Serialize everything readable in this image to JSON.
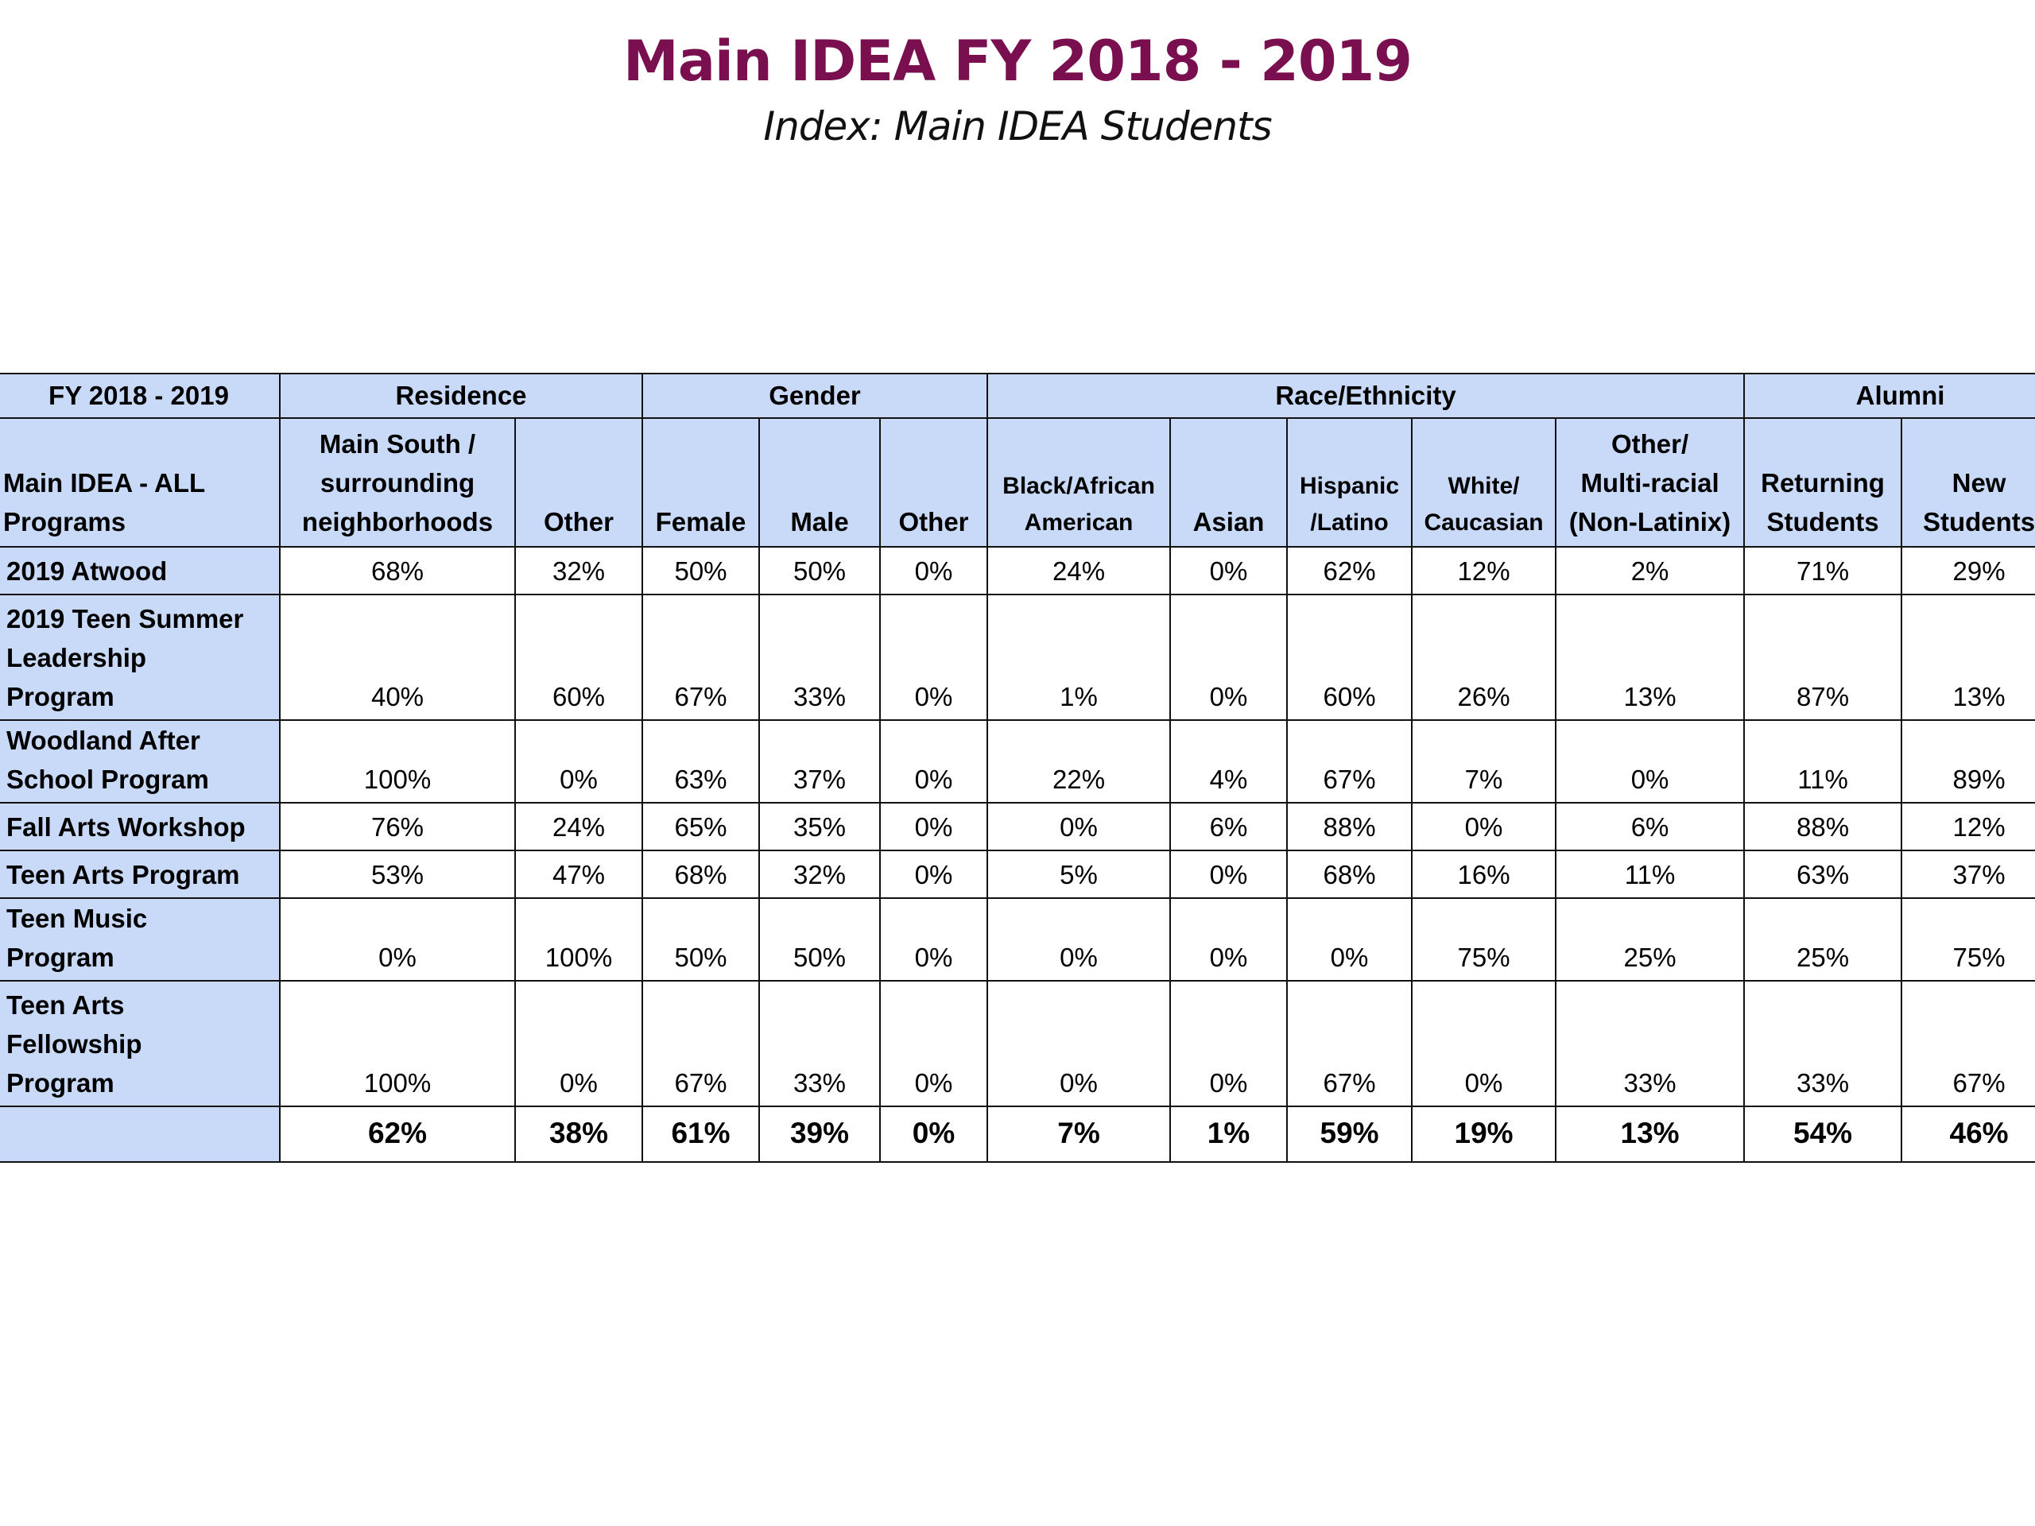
{
  "header": {
    "title": "Main IDEA FY 2018 - 2019",
    "subtitle": "Index: Main IDEA Students"
  },
  "colors": {
    "title": "#7a0f50",
    "header_fill": "#c9daf8",
    "border": "#111111"
  },
  "table": {
    "groups": {
      "fy": "FY 2018 - 2019",
      "residence": "Residence",
      "gender": "Gender",
      "race": "Race/Ethnicity",
      "alumni": "Alumni"
    },
    "columns": {
      "program": [
        "Main IDEA - ALL",
        "Programs"
      ],
      "main_south": [
        "Main South /",
        "surrounding",
        "neighborhoods"
      ],
      "res_other": "Other",
      "female": "Female",
      "male": "Male",
      "gender_other": "Other",
      "black": [
        "Black/African",
        "American"
      ],
      "asian": "Asian",
      "hispanic": [
        "Hispanic",
        "/Latino"
      ],
      "white": [
        "White/",
        "Caucasian"
      ],
      "multi": [
        "Other/",
        "Multi-racial",
        "(Non-Latinix)"
      ],
      "returning": [
        "Returning",
        "Students"
      ],
      "new": [
        "New",
        "Students"
      ]
    },
    "rows": [
      {
        "label": [
          "2019 Atwood"
        ],
        "values": [
          "68%",
          "32%",
          "50%",
          "50%",
          "0%",
          "24%",
          "0%",
          "62%",
          "12%",
          "2%",
          "71%",
          "29%"
        ]
      },
      {
        "label": [
          "2019 Teen Summer",
          "Leadership",
          "Program"
        ],
        "values": [
          "40%",
          "60%",
          "67%",
          "33%",
          "0%",
          "1%",
          "0%",
          "60%",
          "26%",
          "13%",
          "87%",
          "13%"
        ]
      },
      {
        "label": [
          "Woodland After",
          "School Program"
        ],
        "values": [
          "100%",
          "0%",
          "63%",
          "37%",
          "0%",
          "22%",
          "4%",
          "67%",
          "7%",
          "0%",
          "11%",
          "89%"
        ]
      },
      {
        "label": [
          "Fall Arts Workshop"
        ],
        "values": [
          "76%",
          "24%",
          "65%",
          "35%",
          "0%",
          "0%",
          "6%",
          "88%",
          "0%",
          "6%",
          "88%",
          "12%"
        ]
      },
      {
        "label": [
          "Teen Arts Program"
        ],
        "values": [
          "53%",
          "47%",
          "68%",
          "32%",
          "0%",
          "5%",
          "0%",
          "68%",
          "16%",
          "11%",
          "63%",
          "37%"
        ]
      },
      {
        "label": [
          "Teen Music",
          "Program"
        ],
        "values": [
          "0%",
          "100%",
          "50%",
          "50%",
          "0%",
          "0%",
          "0%",
          "0%",
          "75%",
          "25%",
          "25%",
          "75%"
        ]
      },
      {
        "label": [
          "Teen Arts",
          "Fellowship",
          "Program"
        ],
        "values": [
          "100%",
          "0%",
          "67%",
          "33%",
          "0%",
          "0%",
          "0%",
          "67%",
          "0%",
          "33%",
          "33%",
          "67%"
        ]
      }
    ],
    "totals": [
      "62%",
      "38%",
      "61%",
      "39%",
      "0%",
      "7%",
      "1%",
      "59%",
      "19%",
      "13%",
      "54%",
      "46%"
    ]
  }
}
